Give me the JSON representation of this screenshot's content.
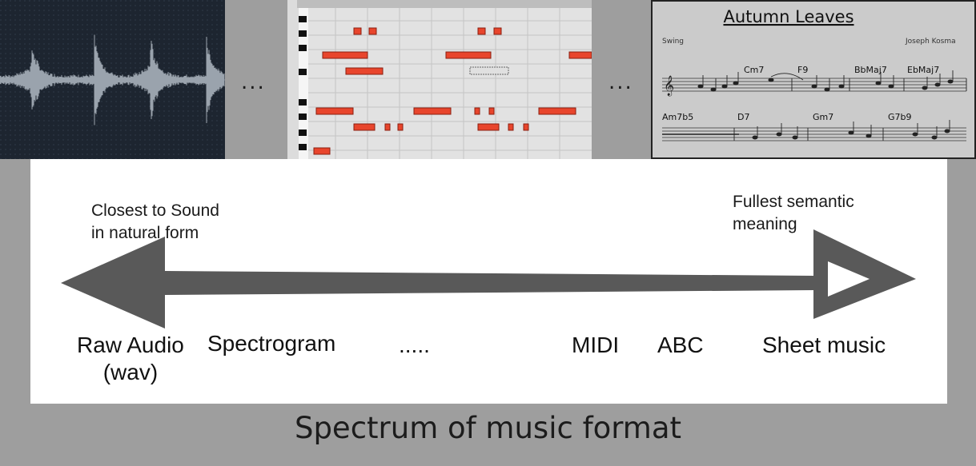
{
  "thumbnails": {
    "sheet": {
      "title": "Autumn Leaves",
      "style": "Swing",
      "composer": "Joseph Kosma",
      "chords_row1": [
        "Cm7",
        "F9",
        "BbMaj7",
        "EbMaj7"
      ],
      "chords_row2": [
        "Am7b5",
        "D7",
        "Gm7",
        "G7b9"
      ]
    },
    "separator": "..."
  },
  "spectrum": {
    "left_note_line1": "Closest to Sound",
    "left_note_line2": "in natural form",
    "right_note_line1": "Fullest semantic",
    "right_note_line2": "meaning",
    "formats": {
      "raw_audio_line1": "Raw Audio",
      "raw_audio_line2": "(wav)",
      "spectrogram": "Spectrogram",
      "dots": ".....",
      "midi": "MIDI",
      "abc": "ABC",
      "sheet_music": "Sheet music"
    }
  },
  "caption": "Spectrum of music format",
  "colors": {
    "arrow": "#595959",
    "note_block": "#e8452c",
    "waveform_bg": "#1d2530"
  }
}
